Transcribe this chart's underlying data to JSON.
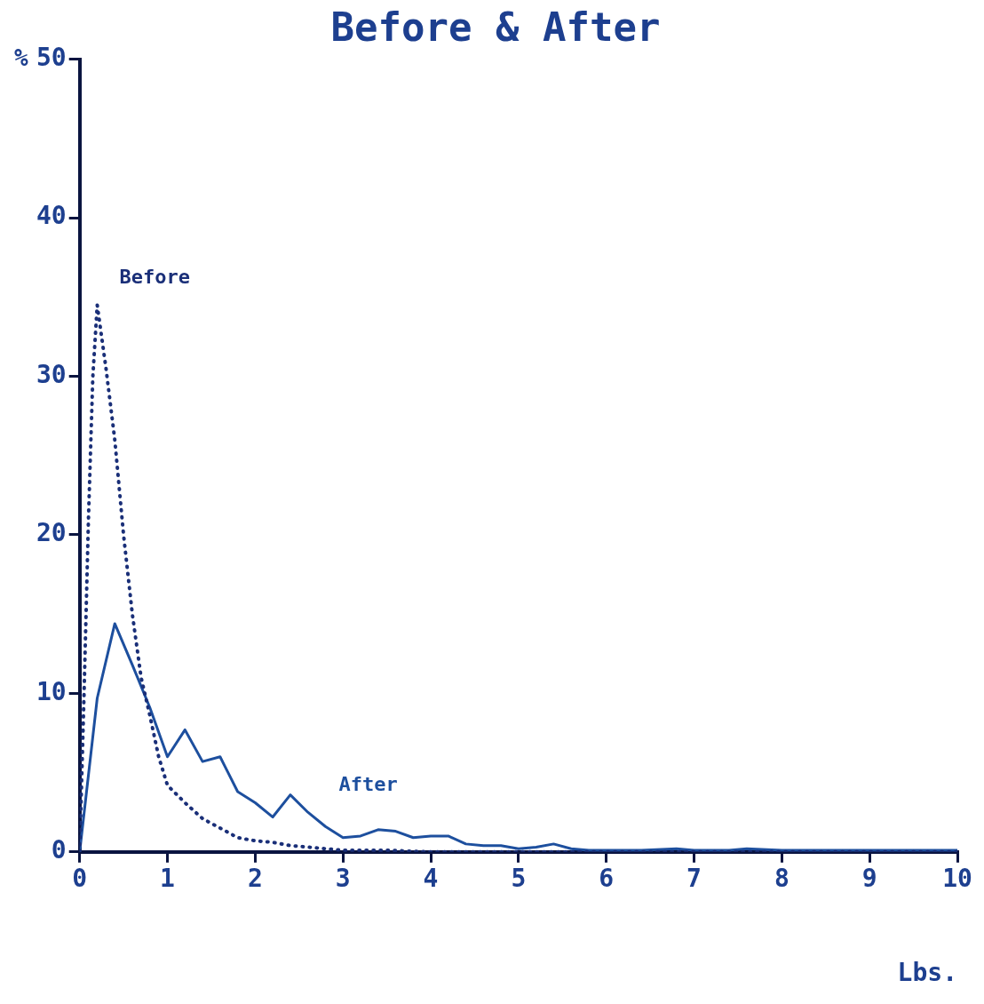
{
  "chart_data": {
    "type": "line",
    "title": "Before & After",
    "xlabel": "Lbs.",
    "ylabel": "%",
    "xlim": [
      0,
      10
    ],
    "xticks": [
      0,
      1,
      2,
      3,
      4,
      5,
      6,
      7,
      8,
      9,
      10
    ],
    "ylim": [
      0,
      50
    ],
    "yticks": [
      0,
      10,
      20,
      30,
      40,
      50
    ],
    "grid": false,
    "legend": false,
    "marker": "none",
    "series": [
      {
        "name": "Before",
        "color": "#1a2f78",
        "line_style": "dotted",
        "x": [
          0,
          0.05,
          0.1,
          0.15,
          0.2,
          0.3,
          0.4,
          0.5,
          0.6,
          0.7,
          0.8,
          0.9,
          1.0,
          1.2,
          1.4,
          1.6,
          1.8,
          2.0,
          2.2,
          2.4,
          2.6,
          2.8,
          3.0,
          3.5,
          4,
          5,
          6,
          7,
          8,
          9,
          10
        ],
        "values": [
          0,
          10,
          21,
          30,
          34.5,
          30.5,
          26,
          20,
          15,
          11,
          8.6,
          6,
          4.2,
          3.1,
          2.1,
          1.5,
          0.9,
          0.7,
          0.6,
          0.4,
          0.3,
          0.2,
          0.1,
          0.1,
          0,
          0,
          0,
          0,
          0,
          0,
          0
        ]
      },
      {
        "name": "After",
        "color": "#1d4f9e",
        "line_style": "solid",
        "x": [
          0,
          0.2,
          0.4,
          0.6,
          0.8,
          1.0,
          1.2,
          1.4,
          1.6,
          1.8,
          2.0,
          2.2,
          2.4,
          2.6,
          2.8,
          3.0,
          3.2,
          3.4,
          3.6,
          3.8,
          4.0,
          4.2,
          4.4,
          4.6,
          4.8,
          5.0,
          5.2,
          5.4,
          5.6,
          5.8,
          6.0,
          6.4,
          6.8,
          7.0,
          7.4,
          7.6,
          8,
          9,
          10
        ],
        "values": [
          0,
          9.7,
          14.4,
          11.8,
          9.1,
          6.0,
          7.7,
          5.7,
          6.0,
          3.8,
          3.1,
          2.2,
          3.6,
          2.5,
          1.6,
          0.9,
          1.0,
          1.4,
          1.3,
          0.9,
          1.0,
          1.0,
          0.5,
          0.4,
          0.4,
          0.2,
          0.3,
          0.5,
          0.2,
          0.1,
          0.1,
          0.1,
          0.2,
          0.1,
          0.1,
          0.2,
          0.1,
          0.1,
          0.1
        ]
      }
    ]
  }
}
